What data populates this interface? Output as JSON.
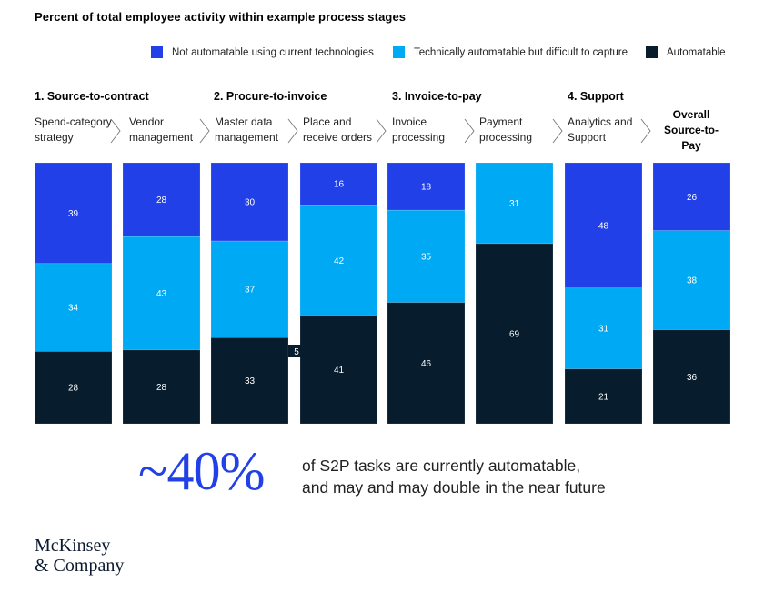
{
  "colors": {
    "not_automatable": "#2140e8",
    "technically_automatable": "#00a9f4",
    "automatable": "#071c2c",
    "accent": "#2140e8"
  },
  "legend": [
    {
      "label": "Not automatable using current technologies",
      "color": "#2140e8"
    },
    {
      "label": "Technically automatable but difficult to capture",
      "color": "#00a9f4"
    },
    {
      "label": "Automatable",
      "color": "#071c2c"
    }
  ],
  "stages": [
    {
      "label": "1. Source-to-contract"
    },
    {
      "label": "2. Procure-to-invoice"
    },
    {
      "label": "3. Invoice-to-pay"
    },
    {
      "label": "4. Support"
    }
  ],
  "steps": [
    {
      "line1": "Spend-category",
      "line2": "strategy"
    },
    {
      "line1": "Vendor",
      "line2": "management"
    },
    {
      "line1": "Master data",
      "line2": "management"
    },
    {
      "line1": "Place and",
      "line2": "receive orders"
    },
    {
      "line1": "Invoice",
      "line2": "processing"
    },
    {
      "line1": "Payment",
      "line2": "processing"
    },
    {
      "line1": "Analytics and",
      "line2": "Support"
    }
  ],
  "overall": {
    "line1": "Overall",
    "line2": "Source-to-",
    "line3": "Pay"
  },
  "annotation": {
    "text": "5"
  },
  "chart_data": {
    "type": "bar",
    "stacked": true,
    "title": "Percent of total employee activity within example process stages",
    "xlabel": "",
    "ylabel": "",
    "ylim": [
      0,
      100
    ],
    "grid": false,
    "legend_position": "top-right",
    "categories": [
      "Spend-category strategy",
      "Vendor management",
      "Master data management",
      "Place and receive orders",
      "Invoice processing",
      "Payment processing",
      "Analytics and Support",
      "Overall Source-to-Pay"
    ],
    "series": [
      {
        "name": "Not automatable using current technologies",
        "values": [
          39,
          28,
          30,
          16,
          18,
          0,
          48,
          26
        ]
      },
      {
        "name": "Technically automatable but difficult to capture",
        "values": [
          34,
          43,
          37,
          42,
          35,
          31,
          31,
          38
        ]
      },
      {
        "name": "Automatable",
        "values": [
          28,
          28,
          33,
          41,
          46,
          69,
          21,
          36
        ]
      }
    ],
    "annotations": [
      {
        "text": "5",
        "between": [
          "Master data management",
          "Place and receive orders"
        ]
      }
    ]
  },
  "callout": {
    "value": "~40%",
    "line1": "of S2P tasks are currently automatable,",
    "line2": "and may and may double in the near future"
  },
  "logo": {
    "line1": "McKinsey",
    "line2": "& Company"
  }
}
